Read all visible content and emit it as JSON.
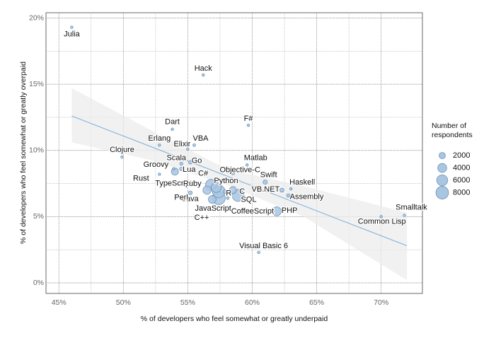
{
  "chart_data": {
    "type": "scatter",
    "x_label": "% of developers who feel somewhat or greatly underpaid",
    "y_label": "% of developers who feel somewhat or greatly overpaid",
    "xlim": [
      44.0,
      73.2
    ],
    "ylim": [
      -0.8,
      20.4
    ],
    "xticks": [
      {
        "value": 45,
        "label": "45%"
      },
      {
        "value": 50,
        "label": "50%"
      },
      {
        "value": 55,
        "label": "55%"
      },
      {
        "value": 60,
        "label": "60%"
      },
      {
        "value": 65,
        "label": "65%"
      },
      {
        "value": 70,
        "label": "70%"
      }
    ],
    "yticks": [
      {
        "value": 0,
        "label": "0%"
      },
      {
        "value": 5,
        "label": "5%"
      },
      {
        "value": 10,
        "label": "10%"
      },
      {
        "value": 15,
        "label": "15%"
      },
      {
        "value": 20,
        "label": "20%"
      }
    ],
    "grid": true,
    "color": "#a9c6e0",
    "edge_color": "#6b93b8",
    "labels": [
      "Julia",
      "Hack",
      "F#",
      "Dart",
      "Erlang",
      "VBA",
      "Elixir",
      "Clojure",
      "Scala",
      "Go",
      "Matlab",
      "Lua",
      "Groovy",
      "TypeScript",
      "Objective-C",
      "Rust",
      "Swift",
      "C#",
      "Python",
      "Haskell",
      "VB.NET",
      "Ruby",
      "Java",
      "R",
      "C",
      "Perl",
      "Assembly",
      "SQL",
      "JavaScript",
      "CoffeeScript",
      "C++",
      "PHP",
      "Smalltalk",
      "Common Lisp",
      "Visual Basic 6"
    ],
    "x": [
      46.0,
      56.2,
      59.7,
      53.8,
      52.8,
      55.5,
      55.0,
      49.9,
      54.5,
      55.2,
      59.6,
      54.5,
      53.9,
      54.0,
      58.5,
      52.8,
      61.0,
      56.8,
      57.2,
      63.0,
      62.3,
      56.5,
      57.4,
      57.9,
      58.5,
      55.2,
      62.8,
      58.9,
      57.4,
      58.1,
      56.9,
      61.9,
      71.8,
      70.0,
      60.5
    ],
    "y": [
      19.3,
      15.7,
      11.9,
      11.6,
      10.4,
      10.4,
      10.1,
      9.5,
      9.0,
      9.1,
      8.9,
      8.6,
      8.6,
      8.4,
      8.3,
      8.2,
      7.6,
      7.4,
      7.2,
      7.1,
      7.0,
      7.0,
      6.9,
      6.9,
      7.0,
      6.8,
      6.6,
      6.6,
      6.4,
      6.4,
      6.3,
      5.4,
      5.1,
      5.0,
      2.3
    ],
    "sizes": [
      200,
      200,
      300,
      200,
      200,
      400,
      200,
      300,
      500,
      600,
      300,
      600,
      300,
      2500,
      700,
      300,
      900,
      6000,
      5000,
      300,
      800,
      3500,
      8000,
      700,
      2500,
      700,
      600,
      7000,
      8500,
      400,
      3000,
      4000,
      150,
      200,
      300
    ],
    "legend": {
      "title": "Number of respondents",
      "sizes": [
        2000,
        4000,
        6000,
        8000
      ]
    },
    "trend": {
      "x": [
        46,
        72
      ],
      "y": [
        12.6,
        2.8
      ],
      "color": "#8db8dc"
    },
    "band": {
      "x": [
        46,
        52,
        58,
        64,
        72
      ],
      "lower": [
        10.6,
        9.3,
        7.4,
        5.0,
        0.2
      ],
      "upper": [
        14.7,
        11.6,
        8.6,
        7.3,
        5.3
      ]
    }
  }
}
